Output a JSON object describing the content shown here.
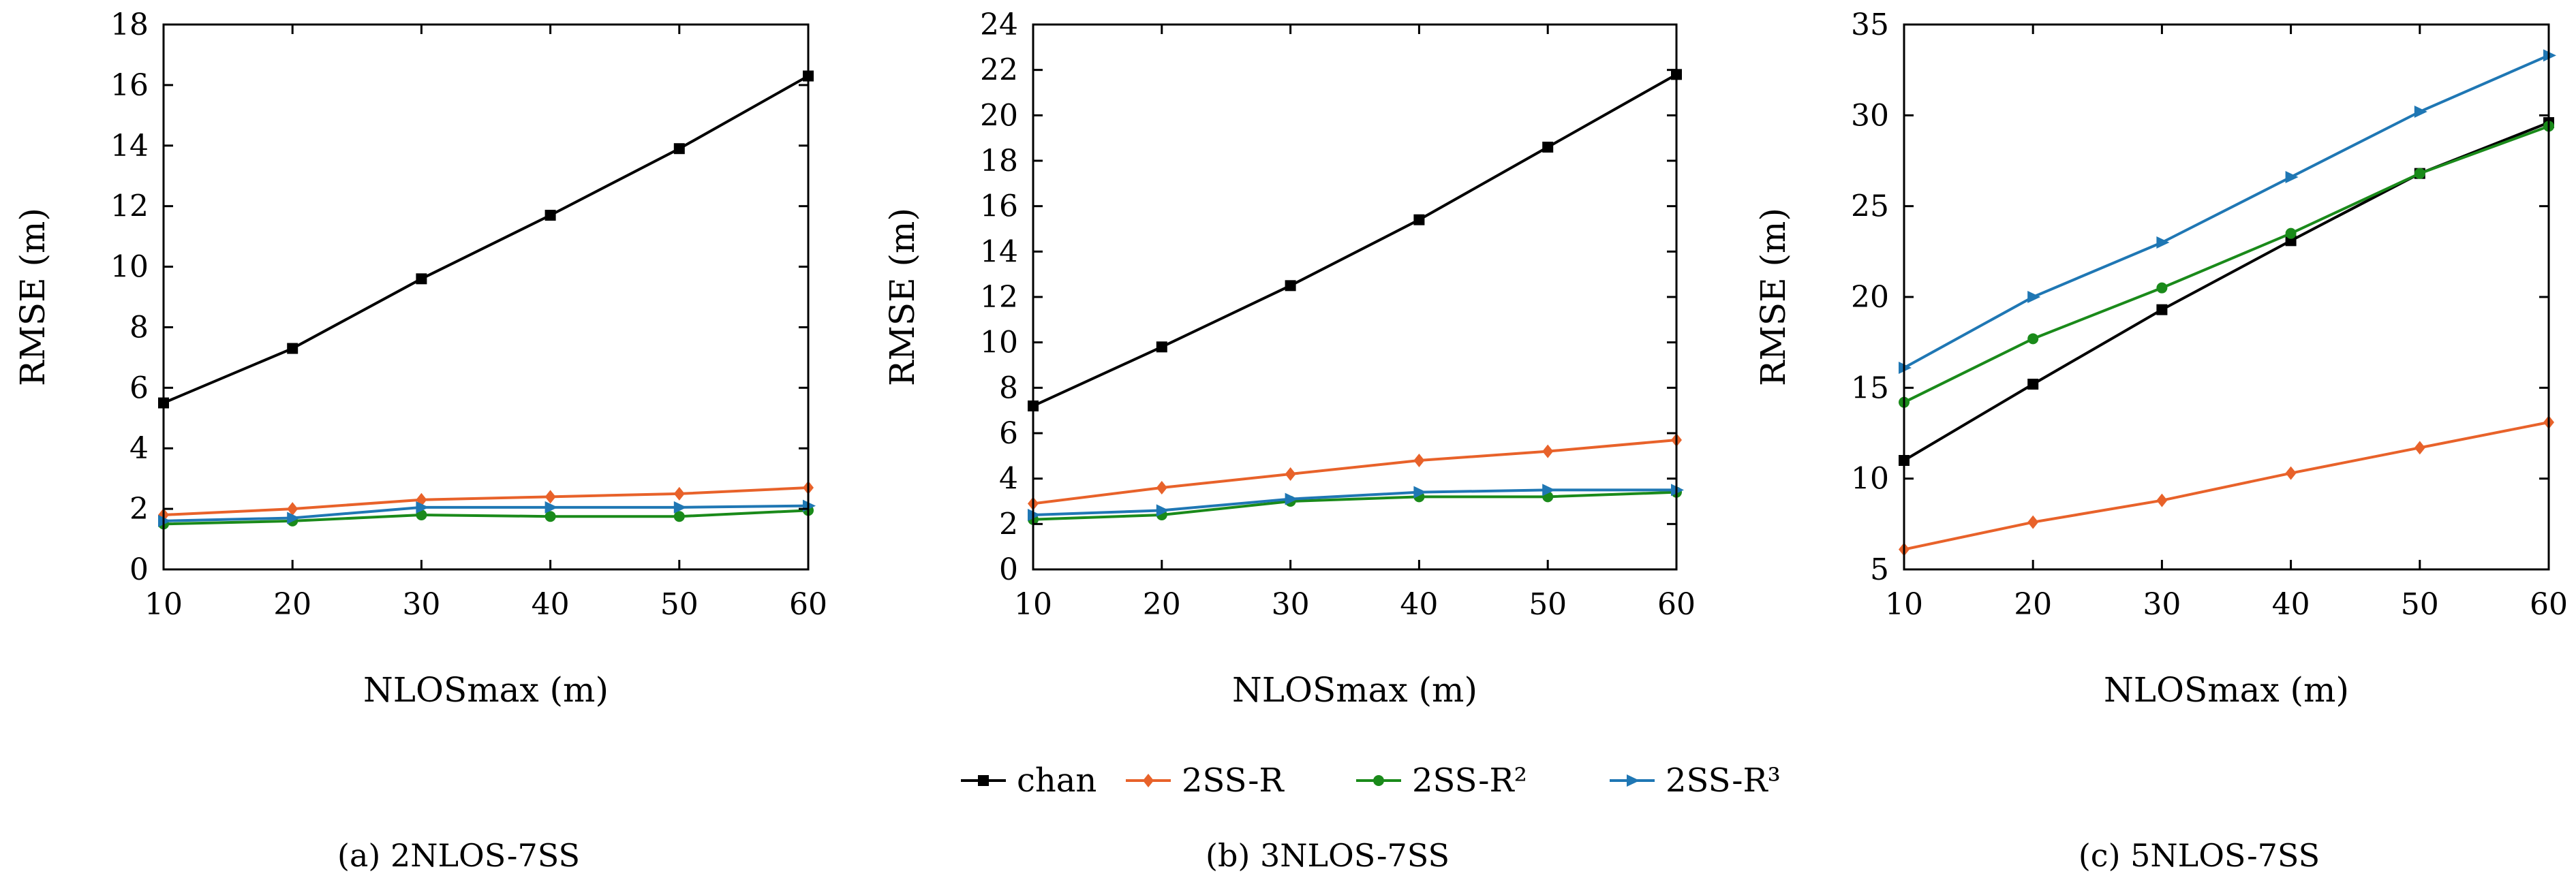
{
  "chart_data": [
    {
      "type": "line",
      "caption": "(a) 2NLOS-7SS",
      "xlabel": "NLOSmax (m)",
      "ylabel": "RMSE (m)",
      "x": [
        10,
        20,
        30,
        40,
        50,
        60
      ],
      "xlim": [
        10,
        60
      ],
      "ylim": [
        0,
        18
      ],
      "xticks": [
        10,
        20,
        30,
        40,
        50,
        60
      ],
      "yticks": [
        0,
        2,
        4,
        6,
        8,
        10,
        12,
        14,
        16,
        18
      ],
      "grid": false,
      "series": [
        {
          "name": "chan",
          "color": "#000000",
          "marker": "square",
          "values": [
            5.5,
            7.3,
            9.6,
            11.7,
            13.9,
            16.3
          ]
        },
        {
          "name": "2SS-R",
          "color": "#e8622a",
          "marker": "diamond",
          "values": [
            1.8,
            2.0,
            2.3,
            2.4,
            2.5,
            2.7
          ]
        },
        {
          "name": "2SS-R²",
          "color": "#1a8a1a",
          "marker": "circle",
          "values": [
            1.5,
            1.6,
            1.8,
            1.75,
            1.75,
            1.95
          ]
        },
        {
          "name": "2SS-R³",
          "color": "#1f77b4",
          "marker": "triangle-right",
          "values": [
            1.6,
            1.7,
            2.05,
            2.05,
            2.05,
            2.1
          ]
        }
      ]
    },
    {
      "type": "line",
      "caption": "(b) 3NLOS-7SS",
      "xlabel": "NLOSmax (m)",
      "ylabel": "RMSE (m)",
      "x": [
        10,
        20,
        30,
        40,
        50,
        60
      ],
      "xlim": [
        10,
        60
      ],
      "ylim": [
        0,
        24
      ],
      "xticks": [
        10,
        20,
        30,
        40,
        50,
        60
      ],
      "yticks": [
        0,
        2,
        4,
        6,
        8,
        10,
        12,
        14,
        16,
        18,
        20,
        22,
        24
      ],
      "grid": false,
      "series": [
        {
          "name": "chan",
          "color": "#000000",
          "marker": "square",
          "values": [
            7.2,
            9.8,
            12.5,
            15.4,
            18.6,
            21.8
          ]
        },
        {
          "name": "2SS-R",
          "color": "#e8622a",
          "marker": "diamond",
          "values": [
            2.9,
            3.6,
            4.2,
            4.8,
            5.2,
            5.7
          ]
        },
        {
          "name": "2SS-R²",
          "color": "#1a8a1a",
          "marker": "circle",
          "values": [
            2.2,
            2.4,
            3.0,
            3.2,
            3.2,
            3.4
          ]
        },
        {
          "name": "2SS-R³",
          "color": "#1f77b4",
          "marker": "triangle-right",
          "values": [
            2.4,
            2.6,
            3.1,
            3.4,
            3.5,
            3.5
          ]
        }
      ]
    },
    {
      "type": "line",
      "caption": "(c) 5NLOS-7SS",
      "xlabel": "NLOSmax (m)",
      "ylabel": "RMSE (m)",
      "x": [
        10,
        20,
        30,
        40,
        50,
        60
      ],
      "xlim": [
        10,
        60
      ],
      "ylim": [
        5,
        35
      ],
      "xticks": [
        10,
        20,
        30,
        40,
        50,
        60
      ],
      "yticks": [
        5,
        10,
        15,
        20,
        25,
        30,
        35
      ],
      "grid": false,
      "series": [
        {
          "name": "chan",
          "color": "#000000",
          "marker": "square",
          "values": [
            11.0,
            15.2,
            19.3,
            23.1,
            26.8,
            29.6
          ]
        },
        {
          "name": "2SS-R",
          "color": "#e8622a",
          "marker": "diamond",
          "values": [
            6.1,
            7.6,
            8.8,
            10.3,
            11.7,
            13.1
          ]
        },
        {
          "name": "2SS-R²",
          "color": "#1a8a1a",
          "marker": "circle",
          "values": [
            14.2,
            17.7,
            20.5,
            23.5,
            26.8,
            29.4
          ]
        },
        {
          "name": "2SS-R³",
          "color": "#1f77b4",
          "marker": "triangle-right",
          "values": [
            16.1,
            20.0,
            23.0,
            26.6,
            30.2,
            33.3
          ]
        }
      ]
    }
  ],
  "legend": {
    "placement": "bottom-center",
    "items": [
      {
        "label": "chan",
        "color": "#000000",
        "marker": "square"
      },
      {
        "label": "2SS-R",
        "color": "#e8622a",
        "marker": "diamond"
      },
      {
        "label": "2SS-R²",
        "color": "#1a8a1a",
        "marker": "circle"
      },
      {
        "label": "2SS-R³",
        "color": "#1f77b4",
        "marker": "triangle-right"
      }
    ]
  }
}
